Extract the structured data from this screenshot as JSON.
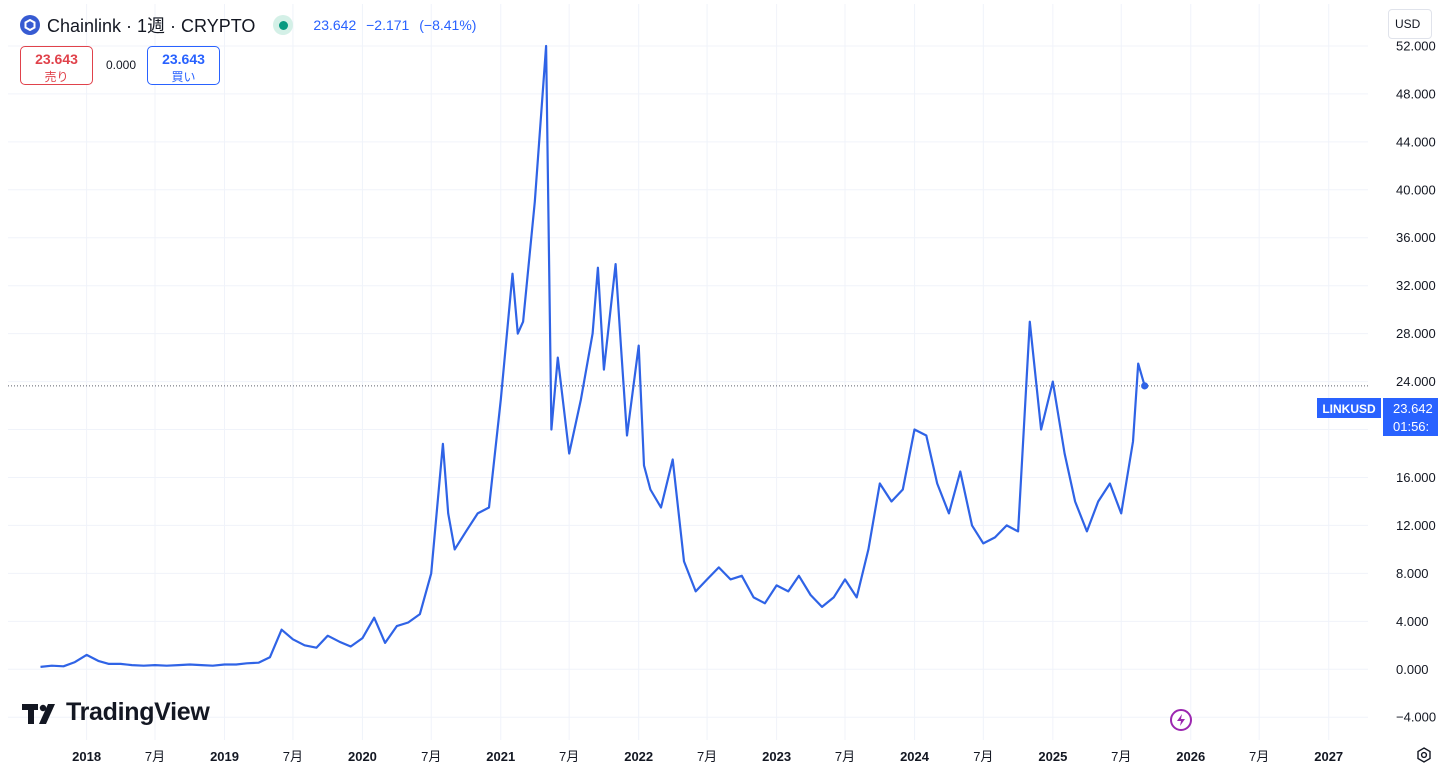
{
  "header": {
    "title": "Chainlink · 1週 · CRYPTO",
    "last": "23.642",
    "change": "−2.171",
    "change_pct": "(−8.41%)"
  },
  "trade": {
    "sell_price": "23.643",
    "sell_label": "売り",
    "spread": "0.000",
    "buy_price": "23.643",
    "buy_label": "買い"
  },
  "currency": "USD",
  "price_label": {
    "symbol": "LINKUSD",
    "price": "23.642",
    "countdown": "01:56:"
  },
  "branding": {
    "logo_text": "TradingView"
  },
  "colors": {
    "line": "#2f63e6",
    "accent": "#2962ff",
    "sell": "#e0424b",
    "live": "#089981",
    "bolt": "#9c27b0"
  },
  "chart_data": {
    "type": "line",
    "series": [
      {
        "name": "LINKUSD",
        "x": [
          "2017-09",
          "2017-10",
          "2017-11",
          "2017-12",
          "2018-01",
          "2018-02",
          "2018-03",
          "2018-04",
          "2018-05",
          "2018-06",
          "2018-07",
          "2018-08",
          "2018-09",
          "2018-10",
          "2018-11",
          "2018-12",
          "2019-01",
          "2019-02",
          "2019-03",
          "2019-04",
          "2019-05",
          "2019-06",
          "2019-07",
          "2019-08",
          "2019-09",
          "2019-10",
          "2019-11",
          "2019-12",
          "2020-01",
          "2020-02",
          "2020-03",
          "2020-04",
          "2020-05",
          "2020-06",
          "2020-07",
          "2020-08",
          "2020-08-15",
          "2020-09",
          "2020-10",
          "2020-11",
          "2020-12",
          "2021-01",
          "2021-02",
          "2021-02-15",
          "2021-03",
          "2021-04",
          "2021-05",
          "2021-05-15",
          "2021-06",
          "2021-07",
          "2021-08",
          "2021-09",
          "2021-09-15",
          "2021-10",
          "2021-11",
          "2021-11-15",
          "2021-12",
          "2022-01",
          "2022-01-15",
          "2022-02",
          "2022-03",
          "2022-04",
          "2022-05",
          "2022-06",
          "2022-07",
          "2022-08",
          "2022-09",
          "2022-10",
          "2022-11",
          "2022-12",
          "2023-01",
          "2023-02",
          "2023-03",
          "2023-04",
          "2023-05",
          "2023-06",
          "2023-07",
          "2023-08",
          "2023-09",
          "2023-10",
          "2023-11",
          "2023-12",
          "2024-01",
          "2024-02",
          "2024-03",
          "2024-04",
          "2024-05",
          "2024-06",
          "2024-07",
          "2024-08",
          "2024-09",
          "2024-10",
          "2024-11",
          "2024-12",
          "2025-01",
          "2025-02",
          "2025-03",
          "2025-04",
          "2025-05",
          "2025-06",
          "2025-07",
          "2025-08",
          "2025-08-15",
          "2025-09"
        ],
        "y": [
          0.2,
          0.3,
          0.25,
          0.6,
          1.2,
          0.7,
          0.45,
          0.45,
          0.35,
          0.3,
          0.35,
          0.3,
          0.35,
          0.4,
          0.35,
          0.3,
          0.4,
          0.4,
          0.5,
          0.55,
          1.0,
          3.3,
          2.5,
          2.0,
          1.8,
          2.8,
          2.3,
          1.9,
          2.6,
          4.3,
          2.2,
          3.6,
          3.9,
          4.6,
          8.0,
          18.8,
          13.0,
          10.0,
          11.5,
          13.0,
          13.5,
          22.5,
          33.0,
          28.0,
          29.0,
          39.0,
          52.0,
          20.0,
          26.0,
          18.0,
          22.5,
          28.0,
          33.5,
          25.0,
          33.8,
          27.0,
          19.5,
          27.0,
          17.0,
          15.0,
          13.5,
          17.5,
          9.0,
          6.5,
          7.5,
          8.5,
          7.5,
          7.8,
          6.0,
          5.5,
          7.0,
          6.5,
          7.8,
          6.2,
          5.2,
          6.0,
          7.5,
          6.0,
          10.0,
          15.5,
          14.0,
          15.0,
          20.0,
          19.5,
          15.5,
          13.0,
          16.5,
          12.0,
          10.5,
          11.0,
          12.0,
          11.5,
          29.0,
          20.0,
          24.0,
          18.0,
          14.0,
          11.5,
          14.0,
          15.5,
          13.0,
          19.0,
          25.5,
          23.64
        ]
      }
    ],
    "ylim": [
      -5.9,
      55.5
    ],
    "xlim": [
      "2017-06-07",
      "2027-04-15"
    ],
    "y_ticks": [
      "52.000",
      "48.000",
      "44.000",
      "40.000",
      "36.000",
      "32.000",
      "28.000",
      "24.000",
      "20.000",
      "16.000",
      "12.000",
      "8.000",
      "4.000",
      "0.000",
      "−4.000"
    ],
    "x_ticks": [
      {
        "label": "2018",
        "date": "2018-01-01"
      },
      {
        "label": "7月",
        "date": "2018-07-01"
      },
      {
        "label": "2019",
        "date": "2019-01-01"
      },
      {
        "label": "7月",
        "date": "2019-07-01"
      },
      {
        "label": "2020",
        "date": "2020-01-01"
      },
      {
        "label": "7月",
        "date": "2020-07-01"
      },
      {
        "label": "2021",
        "date": "2021-01-01"
      },
      {
        "label": "7月",
        "date": "2021-07-01"
      },
      {
        "label": "2022",
        "date": "2022-01-01"
      },
      {
        "label": "7月",
        "date": "2022-07-01"
      },
      {
        "label": "2023",
        "date": "2023-01-01"
      },
      {
        "label": "7月",
        "date": "2023-07-01"
      },
      {
        "label": "2024",
        "date": "2024-01-01"
      },
      {
        "label": "7月",
        "date": "2024-07-01"
      },
      {
        "label": "2025",
        "date": "2025-01-01"
      },
      {
        "label": "7月",
        "date": "2025-07-01"
      },
      {
        "label": "2026",
        "date": "2026-01-01"
      },
      {
        "label": "7月",
        "date": "2026-07-01"
      },
      {
        "label": "2027",
        "date": "2027-01-01"
      }
    ],
    "last_value": 23.642,
    "grid": true,
    "title": "",
    "xlabel": "",
    "ylabel": ""
  }
}
